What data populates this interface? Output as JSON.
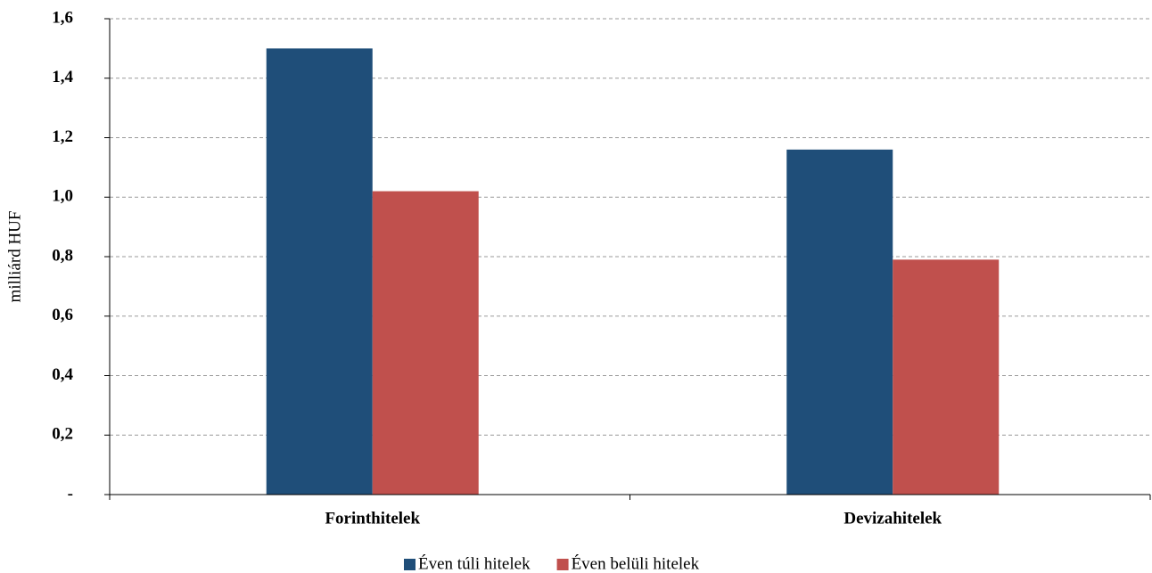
{
  "chart_data": {
    "type": "bar",
    "y_label": "milliárd HUF",
    "categories": [
      "Forinthitelek",
      "Devizahitelek"
    ],
    "series": [
      {
        "name": "Éven túli hitelek",
        "color": "#1f4e79",
        "values": [
          1.5,
          1.16
        ]
      },
      {
        "name": "Éven belüli hitelek",
        "color": "#c0504d",
        "values": [
          1.02,
          0.79
        ]
      }
    ],
    "ylim": [
      0,
      1.6
    ],
    "yticks": [
      {
        "value": 0,
        "label": "-"
      },
      {
        "value": 0.2,
        "label": "0,2"
      },
      {
        "value": 0.4,
        "label": "0,4"
      },
      {
        "value": 0.6,
        "label": "0,6"
      },
      {
        "value": 0.8,
        "label": "0,8"
      },
      {
        "value": 1.0,
        "label": "1,0"
      },
      {
        "value": 1.2,
        "label": "1,2"
      },
      {
        "value": 1.4,
        "label": "1,4"
      },
      {
        "value": 1.6,
        "label": "1,6"
      }
    ],
    "grid": true,
    "legend": "bottom"
  }
}
